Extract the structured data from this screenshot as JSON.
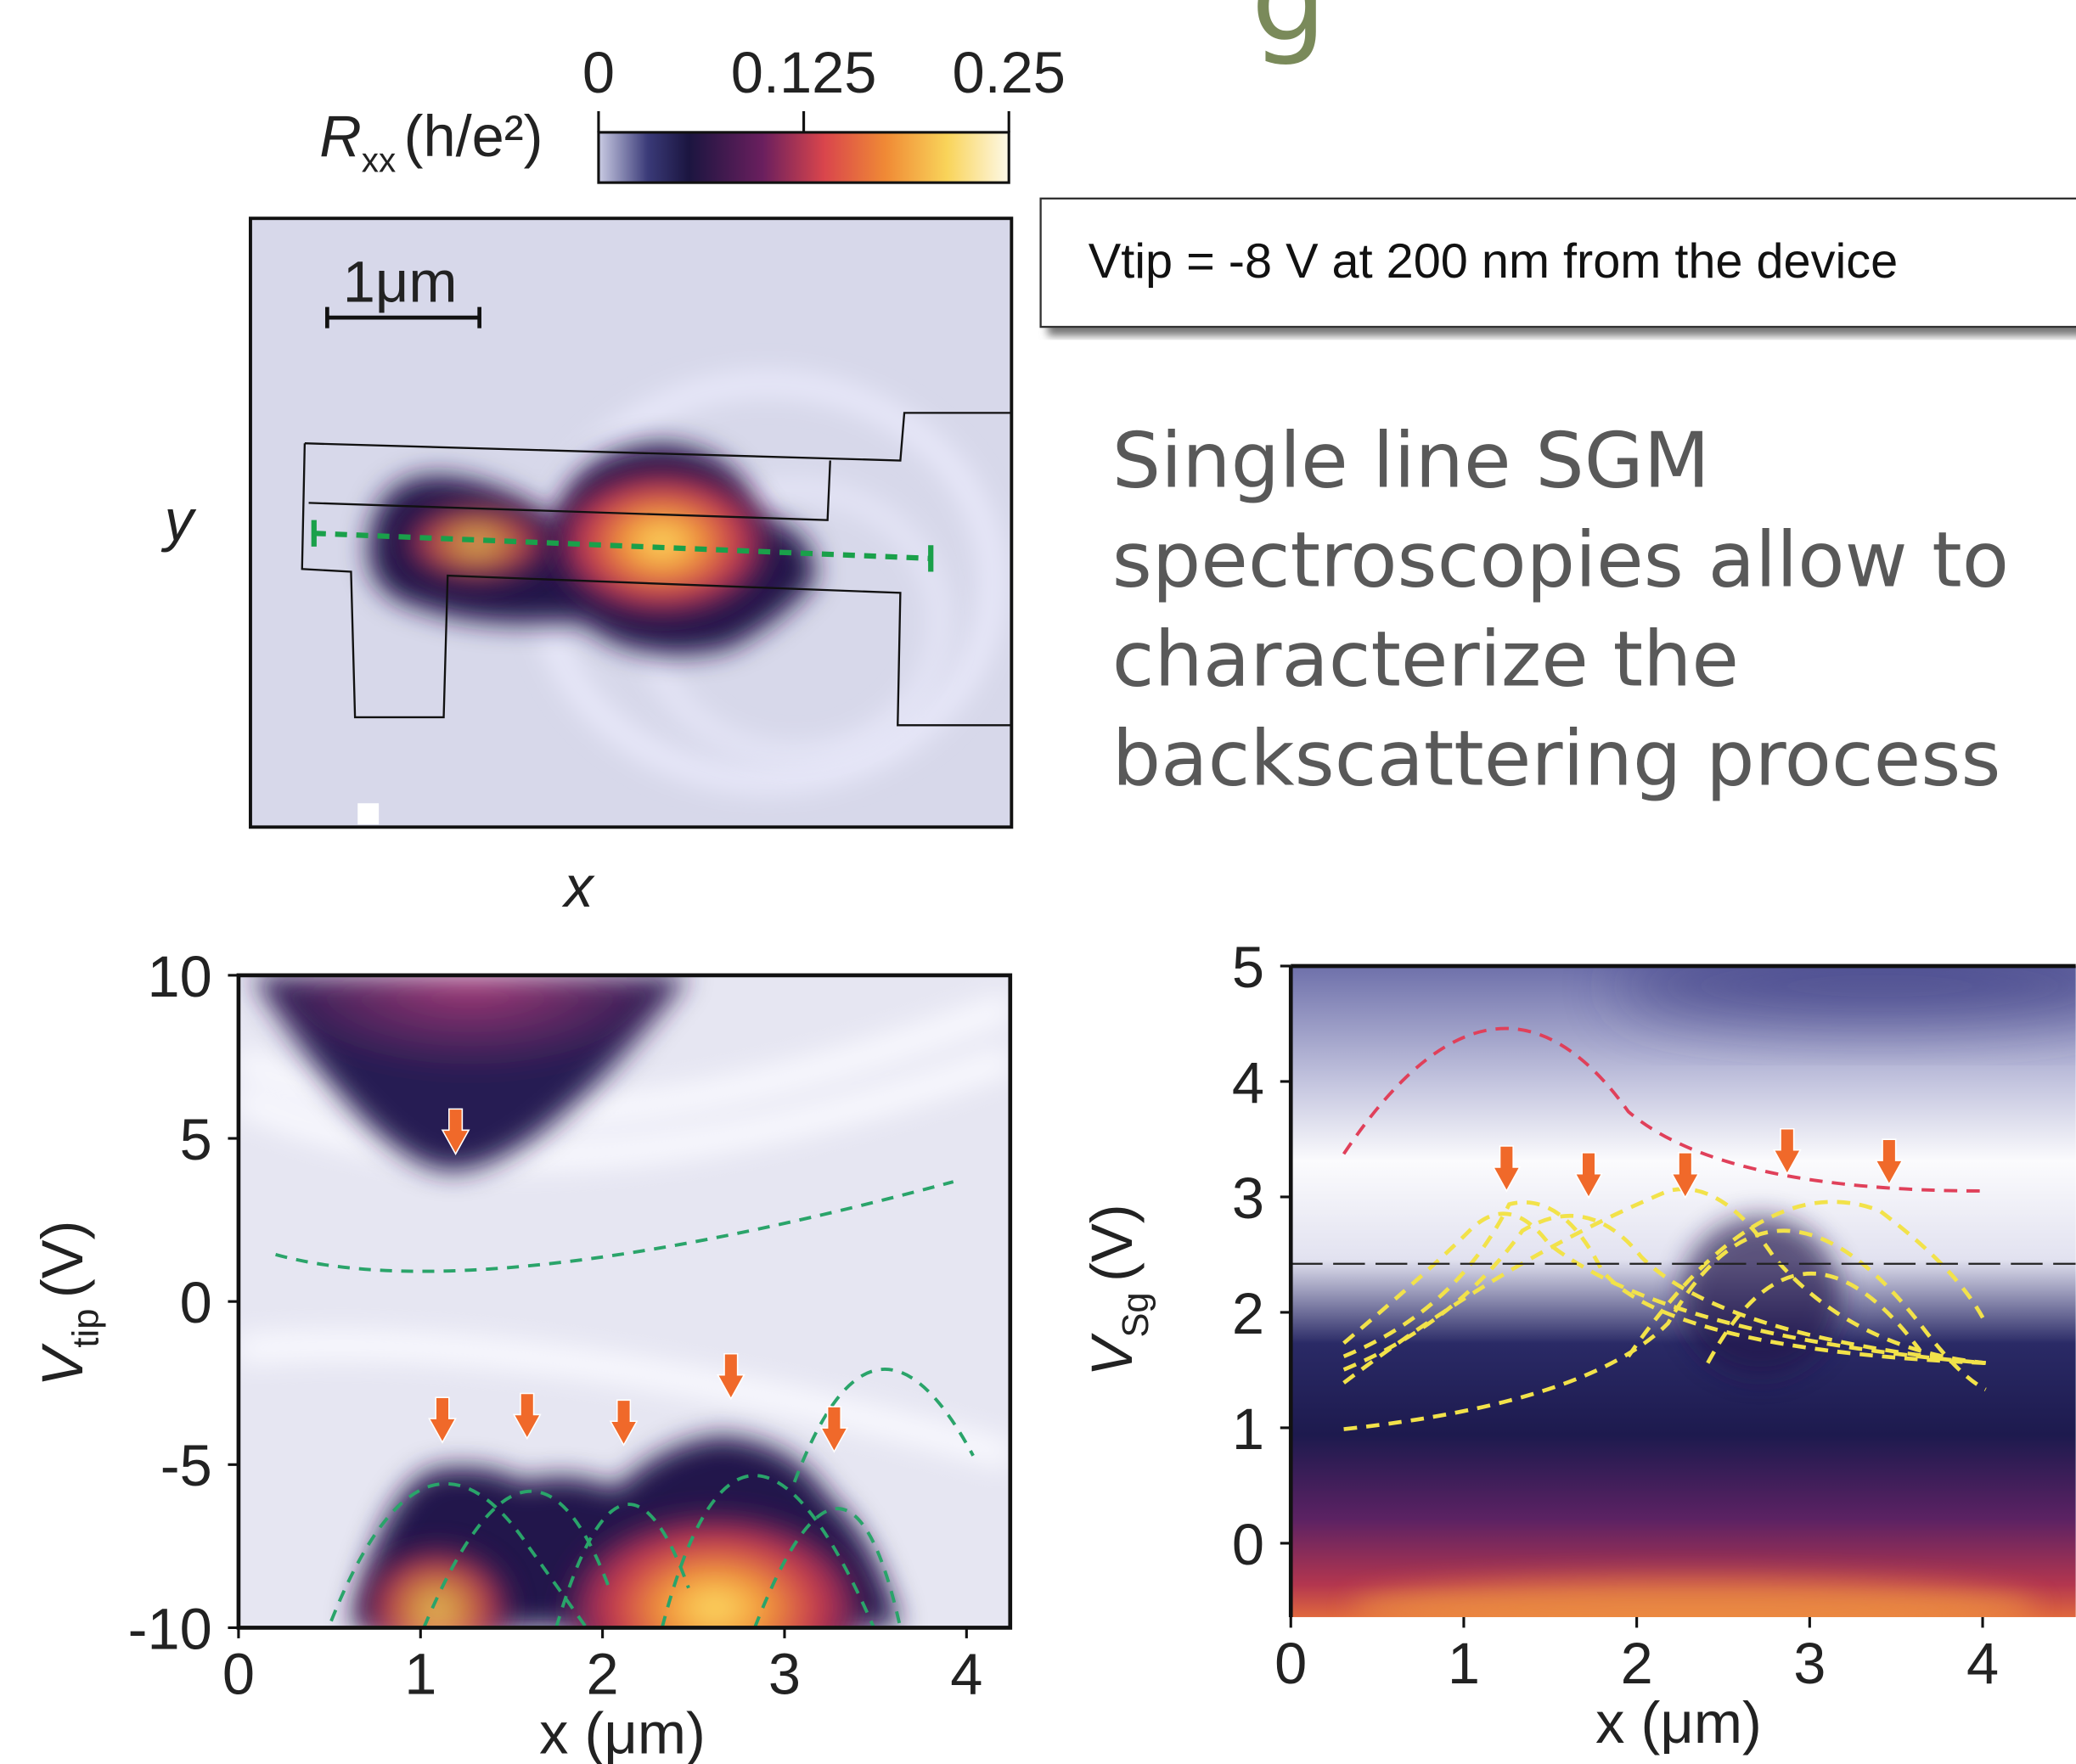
{
  "title_fragment": "g",
  "colorbar": {
    "symbol": "R",
    "subscript": "xx",
    "unit": "(h/e²)",
    "range": [
      0,
      0.25
    ],
    "ticks": [
      0,
      0.125,
      0.25
    ]
  },
  "map": {
    "scale_bar": "1μm",
    "x_label": "x",
    "y_label": "y"
  },
  "annotation": "Vtip = -8 V at 200 nm from the device",
  "body_text": [
    "Single line SGM",
    "spectroscopies allow to",
    "characterize the",
    "backscattering process"
  ],
  "panel_left": {
    "x_label": "x (μm)",
    "y_symbol": "V",
    "y_subscript": "tip",
    "y_unit": "(V)",
    "xlim": [
      0,
      4.24
    ],
    "xticks": [
      0,
      1,
      2,
      3,
      4
    ],
    "ylim": [
      -10,
      10
    ],
    "yticks": [
      -10,
      -5,
      0,
      5,
      10
    ]
  },
  "panel_right": {
    "x_label": "x (μm)",
    "y_symbol": "V",
    "y_subscript": "Sg",
    "y_unit": "(V)",
    "xlim": [
      0,
      4.5
    ],
    "xticks": [
      0,
      1,
      2,
      3,
      4
    ],
    "ylim": [
      -0.64,
      5
    ],
    "yticks": [
      0,
      1,
      2,
      3,
      4,
      5
    ]
  }
}
